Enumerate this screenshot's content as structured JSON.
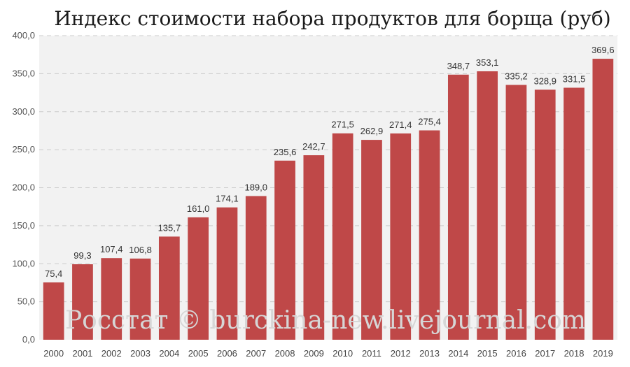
{
  "chart_data": {
    "type": "bar",
    "title": "Индекс стоимости набора продуктов для борща (руб)",
    "xlabel": "",
    "ylabel": "",
    "categories": [
      "2000",
      "2001",
      "2002",
      "2003",
      "2004",
      "2005",
      "2006",
      "2007",
      "2008",
      "2009",
      "2010",
      "2011",
      "2012",
      "2013",
      "2014",
      "2015",
      "2016",
      "2017",
      "2018",
      "2019"
    ],
    "values": [
      75.4,
      99.3,
      107.4,
      106.8,
      135.7,
      161.0,
      174.1,
      189.0,
      235.6,
      242.7,
      271.5,
      262.9,
      271.4,
      275.4,
      348.7,
      353.1,
      335.2,
      328.9,
      331.5,
      369.6
    ],
    "value_labels": [
      "75,4",
      "99,3",
      "107,4",
      "106,8",
      "135,7",
      "161,0",
      "174,1",
      "189,0",
      "235,6",
      "242,7",
      "271,5",
      "262,9",
      "271,4",
      "275,4",
      "348,7",
      "353,1",
      "335,2",
      "328,9",
      "331,5",
      "369,6"
    ],
    "yticks": [
      0,
      50,
      100,
      150,
      200,
      250,
      300,
      350,
      400
    ],
    "ytick_labels": [
      "0,0",
      "50,0",
      "100,0",
      "150,0",
      "200,0",
      "250,0",
      "300,0",
      "350,0",
      "400,0"
    ],
    "ylim": [
      0,
      400
    ],
    "grid": true,
    "watermark": "Росстат © burckina-new.livejournal.com",
    "colors": {
      "bar": "#bf4848",
      "plot_background": "#f2f2f2",
      "grid": "#cccccc"
    }
  }
}
